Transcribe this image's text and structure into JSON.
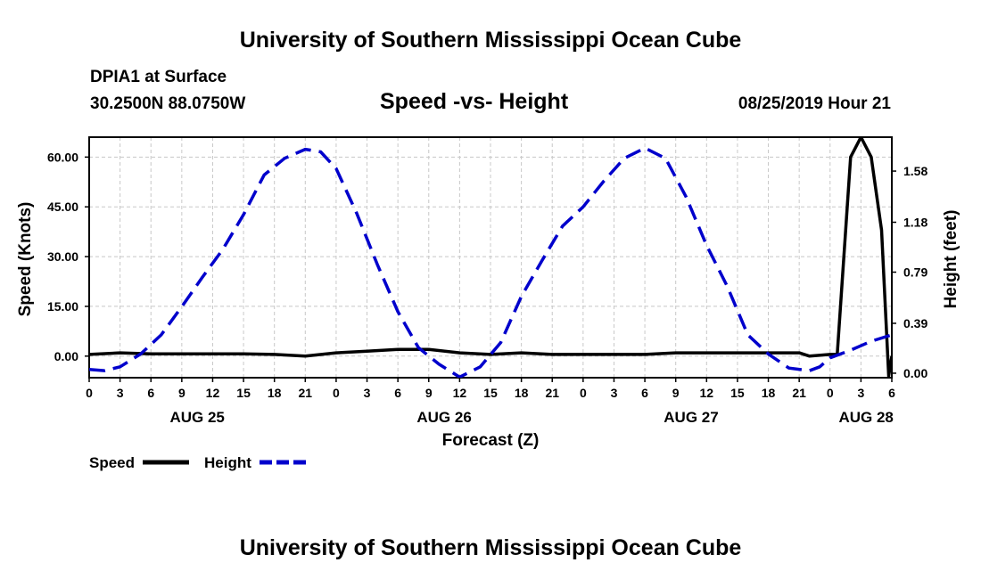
{
  "page": {
    "top_title": "University of Southern Mississippi Ocean Cube",
    "bottom_title": "University of Southern Mississippi Ocean Cube",
    "station": "DPIA1 at Surface",
    "coords": "30.2500N 88.0750W",
    "datetime": "08/25/2019 Hour 21"
  },
  "chart_data": {
    "type": "line",
    "title": "Speed -vs- Height",
    "xlabel": "Forecast (Z)",
    "ylabel_left": "Speed (Knots)",
    "ylabel_right": "Height (feet)",
    "x_unit": "forecast hour from AUG 25 00Z",
    "xlim": [
      0,
      78
    ],
    "ylim_left": [
      -6.5,
      66
    ],
    "ylim_right": [
      -0.035,
      1.845
    ],
    "yticks_left": [
      0,
      15,
      30,
      45,
      60
    ],
    "yticks_left_labels": [
      "0.00",
      "15.00",
      "30.00",
      "45.00",
      "60.00"
    ],
    "yticks_right": [
      0,
      0.39,
      0.79,
      1.18,
      1.58
    ],
    "yticks_right_labels": [
      "0.00",
      "0.39",
      "0.79",
      "1.18",
      "1.58"
    ],
    "xticks": [
      0,
      3,
      6,
      9,
      12,
      15,
      18,
      21,
      24,
      27,
      30,
      33,
      36,
      39,
      42,
      45,
      48,
      51,
      54,
      57,
      60,
      63,
      66,
      69,
      72,
      75,
      78
    ],
    "xtick_labels": [
      "0",
      "3",
      "6",
      "9",
      "12",
      "15",
      "18",
      "21",
      "0",
      "3",
      "6",
      "9",
      "12",
      "15",
      "18",
      "21",
      "0",
      "3",
      "6",
      "9",
      "12",
      "15",
      "18",
      "21",
      "0",
      "3",
      "6"
    ],
    "day_labels": [
      {
        "label": "AUG 25",
        "x": 10.5
      },
      {
        "label": "AUG 26",
        "x": 34.5
      },
      {
        "label": "AUG 27",
        "x": 58.5
      },
      {
        "label": "AUG 28",
        "x": 75.5
      }
    ],
    "grid": true,
    "legend": [
      {
        "name": "Speed",
        "color": "#000000",
        "style": "solid"
      },
      {
        "name": "Height",
        "color": "#0000cc",
        "style": "dashed"
      }
    ],
    "series": [
      {
        "name": "Speed",
        "axis": "left",
        "color": "#000000",
        "style": "solid",
        "x": [
          0,
          3,
          6,
          9,
          12,
          15,
          18,
          21,
          24,
          27,
          30,
          33,
          36,
          39,
          42,
          45,
          48,
          51,
          54,
          57,
          60,
          63,
          66,
          69,
          70,
          72,
          72.7,
          74,
          75,
          76,
          77,
          77.7,
          78
        ],
        "y": [
          0.5,
          1,
          0.7,
          0.7,
          0.7,
          0.7,
          0.5,
          0,
          1,
          1.5,
          2,
          2,
          1,
          0.5,
          1,
          0.5,
          0.5,
          0.5,
          0.5,
          1,
          1,
          1,
          1,
          1,
          0,
          0.5,
          0.5,
          60,
          66,
          60,
          38,
          -6,
          0
        ]
      },
      {
        "name": "Height",
        "axis": "right",
        "color": "#0000cc",
        "style": "dashed",
        "x": [
          0,
          1.5,
          3,
          5,
          7,
          9,
          11,
          13,
          15,
          17,
          19,
          21,
          22.5,
          24,
          26,
          28,
          30,
          32,
          34,
          36,
          38,
          40,
          42,
          44,
          46,
          48,
          50,
          52,
          54,
          56,
          58,
          60,
          62,
          64,
          66,
          68,
          70,
          71,
          72,
          74,
          76,
          78
        ],
        "y": [
          0.03,
          0.02,
          0.05,
          0.15,
          0.3,
          0.52,
          0.75,
          0.97,
          1.24,
          1.55,
          1.68,
          1.75,
          1.73,
          1.6,
          1.25,
          0.85,
          0.48,
          0.2,
          0.07,
          -0.03,
          0.05,
          0.24,
          0.6,
          0.88,
          1.15,
          1.3,
          1.5,
          1.68,
          1.76,
          1.68,
          1.38,
          1.0,
          0.68,
          0.3,
          0.15,
          0.04,
          0.02,
          0.05,
          0.12,
          0.18,
          0.25,
          0.3
        ]
      }
    ]
  }
}
